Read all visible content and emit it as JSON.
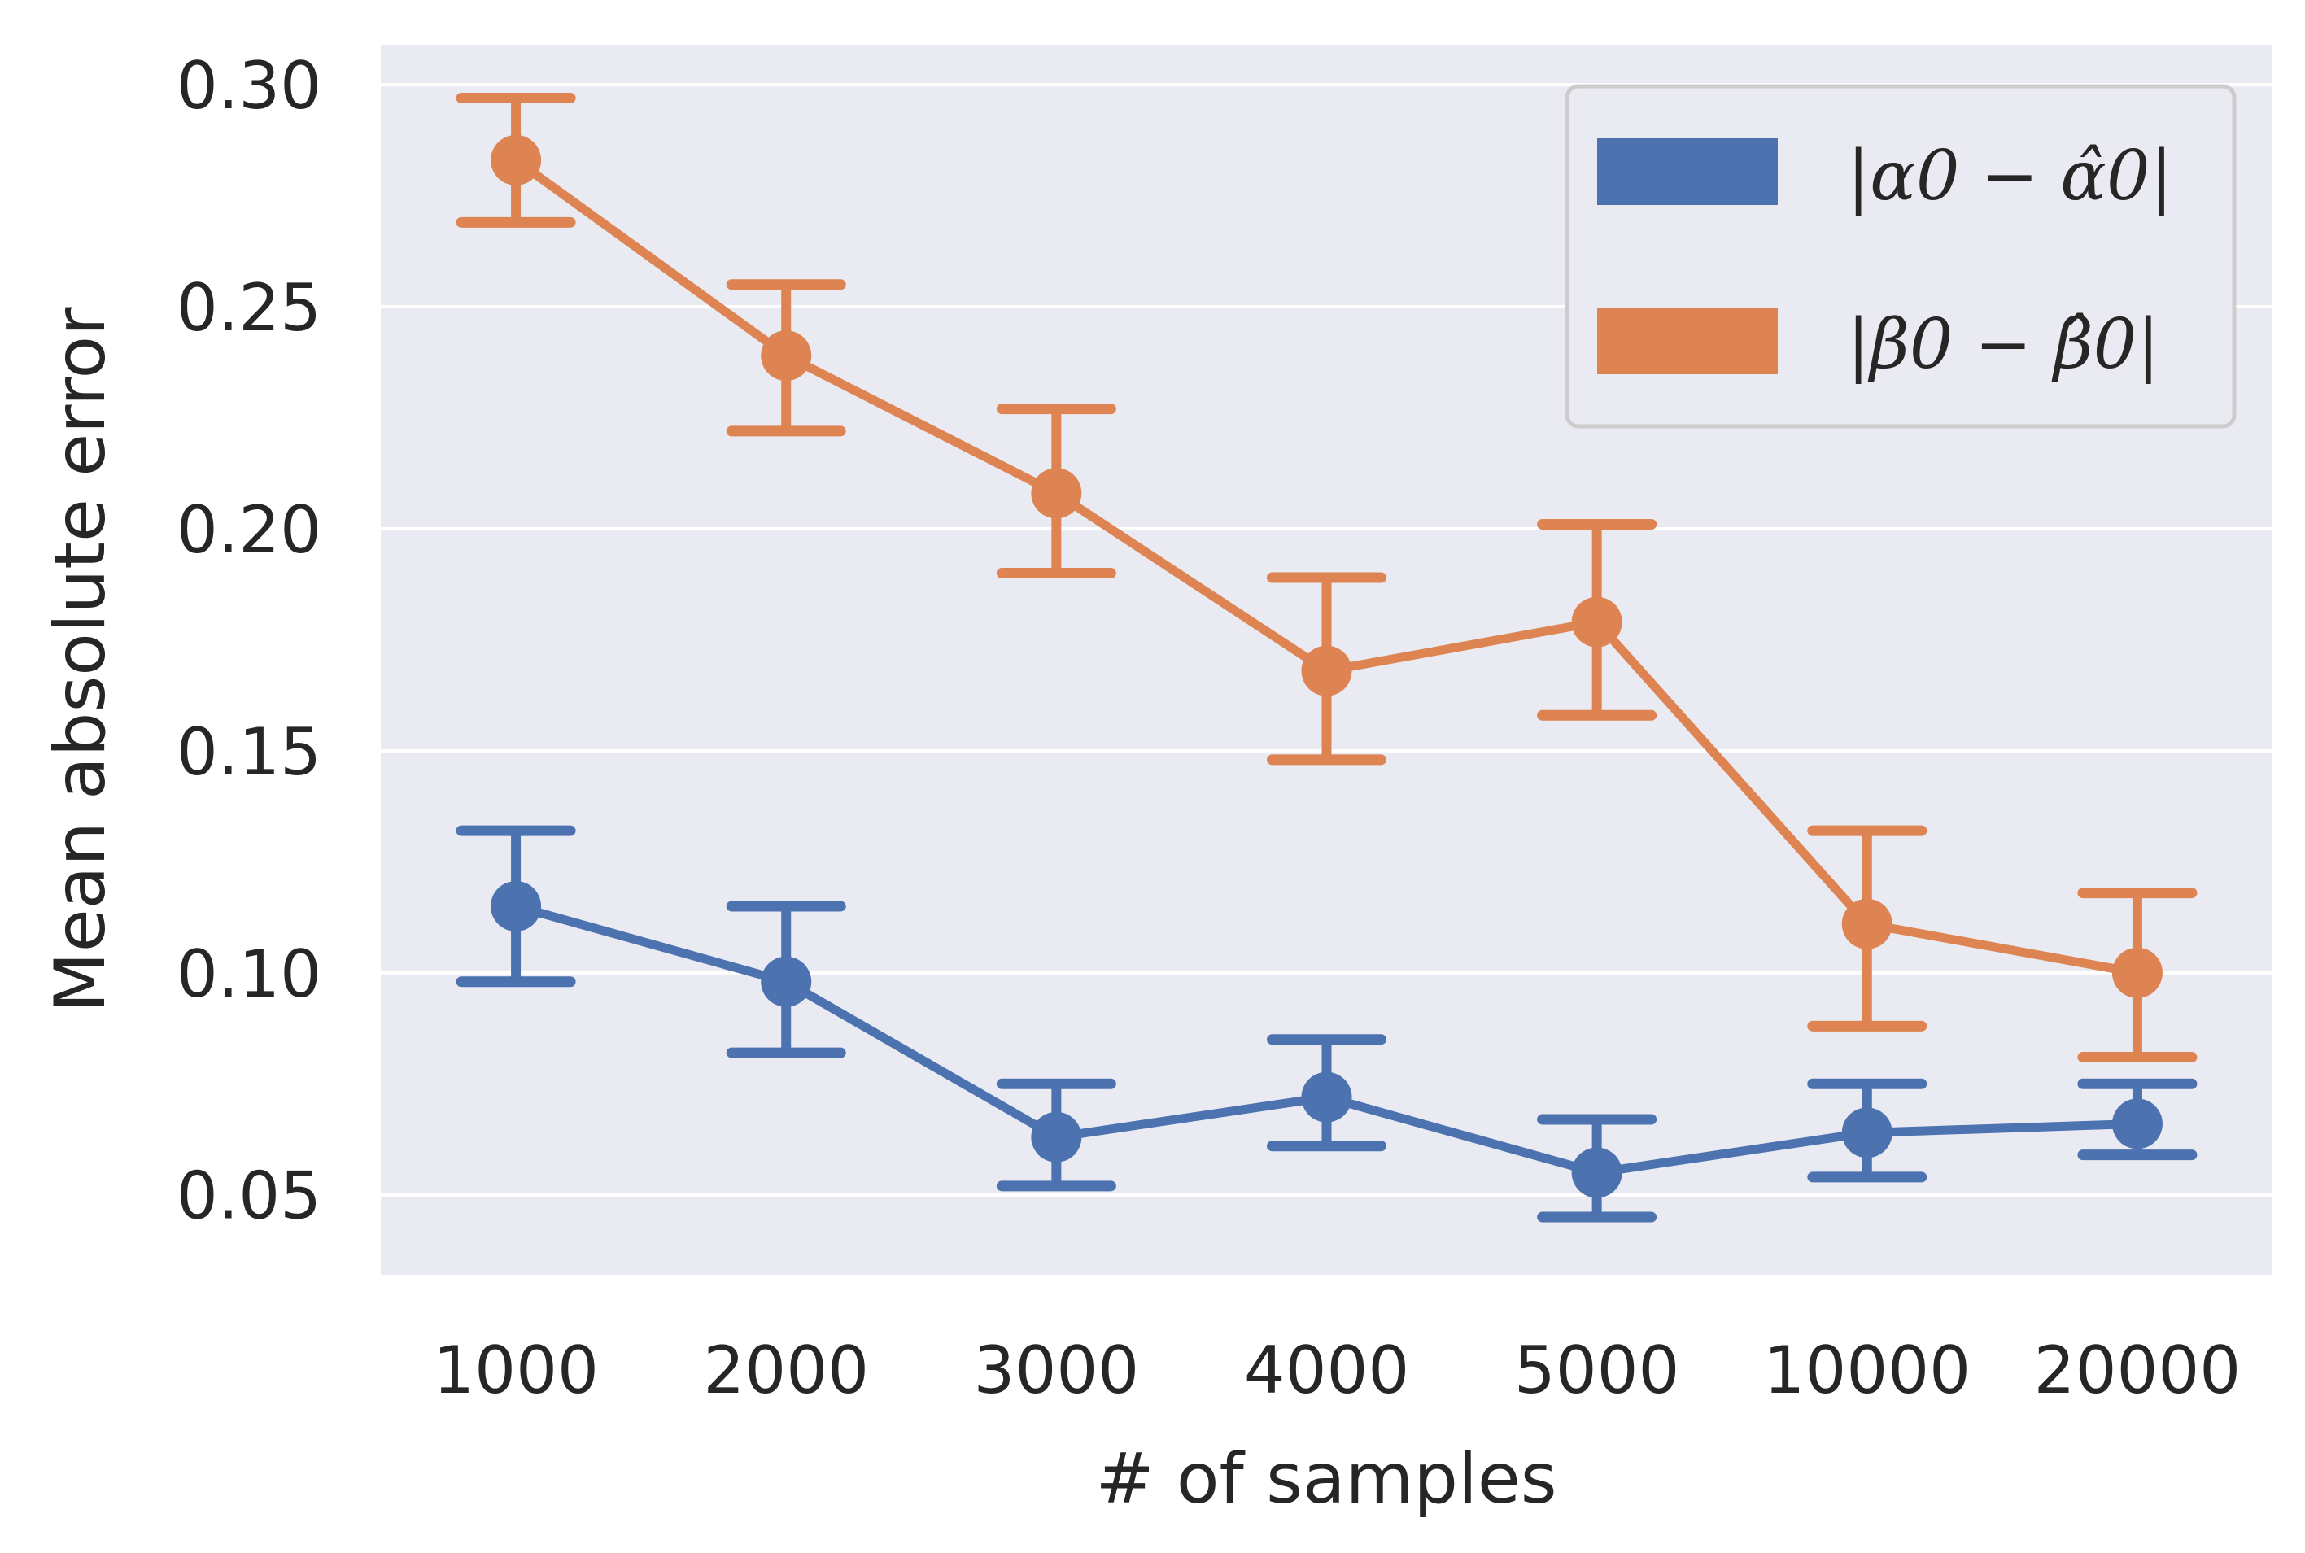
{
  "chart_data": {
    "type": "line",
    "categories": [
      "1000",
      "2000",
      "3000",
      "4000",
      "5000",
      "10000",
      "20000"
    ],
    "xlabel": "# of samples",
    "ylabel": "Mean absolute error",
    "ylim": [
      0.032,
      0.309
    ],
    "yticks": [
      0.05,
      0.1,
      0.15,
      0.2,
      0.25,
      0.3
    ],
    "ytick_labels": [
      "0.05",
      "0.10",
      "0.15",
      "0.20",
      "0.25",
      "0.30"
    ],
    "grid": true,
    "legend_position": "top-right",
    "series": [
      {
        "name": "|α0 − α̂0|",
        "color": "#4c72b0",
        "values": [
          0.115,
          0.098,
          0.063,
          0.072,
          0.055,
          0.064,
          0.066
        ],
        "lower": [
          0.098,
          0.082,
          0.052,
          0.061,
          0.045,
          0.054,
          0.059
        ],
        "upper": [
          0.132,
          0.115,
          0.075,
          0.085,
          0.067,
          0.075,
          0.075
        ]
      },
      {
        "name": "|β0 − β̂0|",
        "color": "#dd8452",
        "values": [
          0.283,
          0.239,
          0.208,
          0.168,
          0.179,
          0.111,
          0.1
        ],
        "lower": [
          0.269,
          0.222,
          0.19,
          0.148,
          0.158,
          0.088,
          0.081
        ],
        "upper": [
          0.297,
          0.255,
          0.227,
          0.189,
          0.201,
          0.132,
          0.118
        ]
      }
    ]
  }
}
